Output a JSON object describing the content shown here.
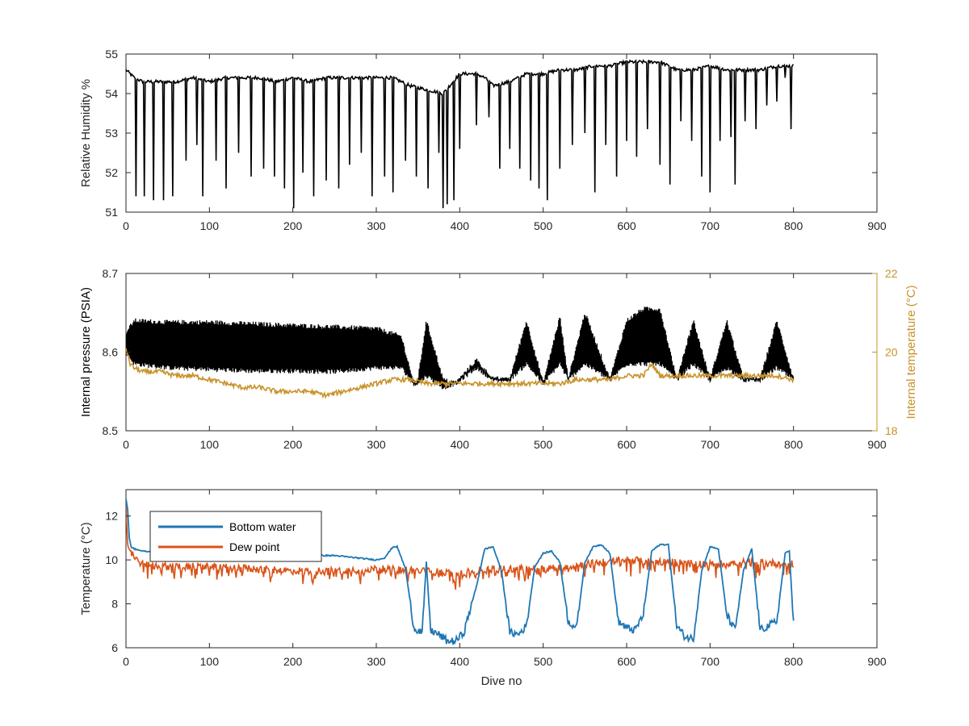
{
  "chart_data": [
    {
      "type": "line",
      "xlabel": "",
      "ylabel": "Relative Humidity %",
      "xlim": [
        0,
        900
      ],
      "ylim": [
        51,
        55
      ],
      "xticks": [
        0,
        100,
        200,
        300,
        400,
        500,
        600,
        700,
        800,
        900
      ],
      "yticks": [
        51,
        52,
        53,
        54,
        55
      ],
      "grid": false,
      "series": [
        {
          "color": "#000000",
          "x": [
            0,
            10,
            20,
            40,
            60,
            80,
            100,
            120,
            140,
            160,
            180,
            200,
            220,
            240,
            260,
            280,
            300,
            320,
            340,
            360,
            380,
            400,
            420,
            430,
            440,
            460,
            480,
            500,
            520,
            540,
            560,
            580,
            600,
            620,
            640,
            660,
            680,
            700,
            720,
            740,
            760,
            780,
            800
          ],
          "values": [
            54.6,
            54.4,
            54.3,
            54.3,
            54.3,
            54.4,
            54.3,
            54.4,
            54.4,
            54.4,
            54.3,
            54.4,
            54.3,
            54.4,
            54.4,
            54.4,
            54.4,
            54.4,
            54.2,
            54.1,
            54.0,
            54.5,
            54.5,
            54.4,
            54.2,
            54.3,
            54.5,
            54.5,
            54.6,
            54.6,
            54.7,
            54.7,
            54.8,
            54.8,
            54.8,
            54.6,
            54.6,
            54.7,
            54.6,
            54.6,
            54.6,
            54.7,
            54.7
          ],
          "dips": [
            {
              "x": 12,
              "min": 51.4
            },
            {
              "x": 22,
              "min": 51.4
            },
            {
              "x": 33,
              "min": 51.3
            },
            {
              "x": 45,
              "min": 51.3
            },
            {
              "x": 56,
              "min": 51.4
            },
            {
              "x": 72,
              "min": 52.3
            },
            {
              "x": 85,
              "min": 52.7
            },
            {
              "x": 92,
              "min": 51.4
            },
            {
              "x": 108,
              "min": 52.3
            },
            {
              "x": 120,
              "min": 51.6
            },
            {
              "x": 135,
              "min": 52.5
            },
            {
              "x": 150,
              "min": 51.9
            },
            {
              "x": 165,
              "min": 52.1
            },
            {
              "x": 178,
              "min": 51.9
            },
            {
              "x": 190,
              "min": 51.6
            },
            {
              "x": 201,
              "min": 51.1
            },
            {
              "x": 212,
              "min": 52.0
            },
            {
              "x": 225,
              "min": 51.4
            },
            {
              "x": 240,
              "min": 51.8
            },
            {
              "x": 255,
              "min": 51.6
            },
            {
              "x": 268,
              "min": 52.2
            },
            {
              "x": 282,
              "min": 52.5
            },
            {
              "x": 295,
              "min": 51.4
            },
            {
              "x": 310,
              "min": 51.9
            },
            {
              "x": 320,
              "min": 51.5
            },
            {
              "x": 335,
              "min": 52.3
            },
            {
              "x": 348,
              "min": 51.9
            },
            {
              "x": 362,
              "min": 51.6
            },
            {
              "x": 375,
              "min": 52.5
            },
            {
              "x": 380,
              "min": 51.1
            },
            {
              "x": 385,
              "min": 51.2
            },
            {
              "x": 393,
              "min": 51.3
            },
            {
              "x": 400,
              "min": 52.6
            },
            {
              "x": 420,
              "min": 53.2
            },
            {
              "x": 435,
              "min": 53.4
            },
            {
              "x": 448,
              "min": 52.1
            },
            {
              "x": 460,
              "min": 52.6
            },
            {
              "x": 472,
              "min": 52.1
            },
            {
              "x": 485,
              "min": 51.8
            },
            {
              "x": 495,
              "min": 51.6
            },
            {
              "x": 505,
              "min": 51.3
            },
            {
              "x": 520,
              "min": 52.1
            },
            {
              "x": 535,
              "min": 52.7
            },
            {
              "x": 550,
              "min": 53.0
            },
            {
              "x": 562,
              "min": 51.5
            },
            {
              "x": 575,
              "min": 52.7
            },
            {
              "x": 588,
              "min": 51.9
            },
            {
              "x": 600,
              "min": 52.8
            },
            {
              "x": 612,
              "min": 52.4
            },
            {
              "x": 625,
              "min": 53.1
            },
            {
              "x": 640,
              "min": 52.2
            },
            {
              "x": 652,
              "min": 51.7
            },
            {
              "x": 665,
              "min": 53.3
            },
            {
              "x": 678,
              "min": 52.8
            },
            {
              "x": 690,
              "min": 51.9
            },
            {
              "x": 700,
              "min": 51.5
            },
            {
              "x": 712,
              "min": 52.8
            },
            {
              "x": 725,
              "min": 52.9
            },
            {
              "x": 730,
              "min": 51.7
            },
            {
              "x": 742,
              "min": 53.3
            },
            {
              "x": 755,
              "min": 53.1
            },
            {
              "x": 768,
              "min": 53.7
            },
            {
              "x": 780,
              "min": 53.8
            },
            {
              "x": 790,
              "min": 54.4
            },
            {
              "x": 797,
              "min": 53.1
            }
          ]
        }
      ]
    },
    {
      "type": "line",
      "xlabel": "",
      "ylabel": "Internal pressure (PSIA)",
      "y2label": "Internal temperature (°C)",
      "xlim": [
        0,
        900
      ],
      "ylim": [
        8.5,
        8.7
      ],
      "y2lim": [
        18,
        22
      ],
      "xticks": [
        0,
        100,
        200,
        300,
        400,
        500,
        600,
        700,
        800,
        900
      ],
      "yticks": [
        8.5,
        8.6,
        8.7
      ],
      "y2ticks": [
        18,
        20,
        22
      ],
      "y2color": "#C8922A",
      "grid": false,
      "series": [
        {
          "axis": "left",
          "color": "#000000",
          "x": [
            0,
            10,
            50,
            100,
            150,
            200,
            250,
            300,
            330,
            345,
            350,
            360,
            380,
            395,
            420,
            440,
            460,
            480,
            500,
            520,
            530,
            550,
            580,
            600,
            620,
            640,
            660,
            680,
            700,
            720,
            740,
            760,
            780,
            800
          ],
          "upper": [
            8.625,
            8.64,
            8.638,
            8.638,
            8.636,
            8.634,
            8.632,
            8.63,
            8.62,
            8.56,
            8.565,
            8.64,
            8.565,
            8.56,
            8.59,
            8.565,
            8.565,
            8.64,
            8.56,
            8.645,
            8.565,
            8.65,
            8.565,
            8.64,
            8.655,
            8.655,
            8.565,
            8.64,
            8.565,
            8.64,
            8.565,
            8.565,
            8.64,
            8.565
          ],
          "lower": [
            8.6,
            8.585,
            8.58,
            8.578,
            8.576,
            8.576,
            8.575,
            8.58,
            8.58,
            8.56,
            8.56,
            8.57,
            8.555,
            8.56,
            8.58,
            8.565,
            8.565,
            8.585,
            8.56,
            8.585,
            8.565,
            8.585,
            8.565,
            8.585,
            8.585,
            8.585,
            8.565,
            8.585,
            8.565,
            8.58,
            8.565,
            8.565,
            8.58,
            8.565
          ]
        },
        {
          "axis": "right",
          "color": "#C8922A",
          "x": [
            0,
            5,
            10,
            20,
            40,
            60,
            80,
            100,
            120,
            140,
            160,
            180,
            200,
            220,
            240,
            260,
            280,
            300,
            320,
            340,
            360,
            380,
            400,
            420,
            440,
            460,
            480,
            500,
            520,
            540,
            560,
            580,
            600,
            620,
            630,
            640,
            660,
            680,
            700,
            720,
            740,
            760,
            780,
            800
          ],
          "values": [
            20.1,
            19.7,
            19.6,
            19.5,
            19.5,
            19.4,
            19.4,
            19.3,
            19.2,
            19.1,
            19.1,
            19.0,
            19.0,
            19.0,
            18.9,
            19.0,
            19.1,
            19.2,
            19.3,
            19.3,
            19.2,
            19.2,
            19.2,
            19.2,
            19.2,
            19.2,
            19.2,
            19.2,
            19.2,
            19.3,
            19.3,
            19.3,
            19.4,
            19.4,
            19.7,
            19.4,
            19.4,
            19.4,
            19.4,
            19.4,
            19.4,
            19.4,
            19.4,
            19.3
          ]
        }
      ]
    },
    {
      "type": "line",
      "xlabel": "Dive no",
      "ylabel": "Temperature (°C)",
      "xlim": [
        0,
        900
      ],
      "ylim": [
        6,
        13.2
      ],
      "xticks": [
        0,
        100,
        200,
        300,
        400,
        500,
        600,
        700,
        800,
        900
      ],
      "yticks": [
        6,
        8,
        10,
        12
      ],
      "grid": false,
      "legend": "top-left",
      "series": [
        {
          "name": "Bottom water",
          "color": "#1F77B4",
          "x": [
            0,
            2,
            4,
            6,
            10,
            20,
            50,
            100,
            150,
            200,
            250,
            300,
            310,
            320,
            325,
            335,
            345,
            355,
            360,
            365,
            375,
            385,
            395,
            405,
            420,
            430,
            440,
            450,
            460,
            470,
            480,
            490,
            500,
            510,
            520,
            530,
            540,
            550,
            560,
            570,
            580,
            590,
            600,
            610,
            620,
            630,
            640,
            650,
            660,
            670,
            680,
            690,
            700,
            710,
            720,
            730,
            740,
            750,
            760,
            770,
            780,
            790,
            795,
            800
          ],
          "values": [
            12.8,
            12.3,
            11.0,
            10.6,
            10.5,
            10.4,
            10.3,
            10.3,
            10.2,
            10.2,
            10.2,
            10.0,
            10.1,
            10.6,
            10.6,
            9.6,
            6.9,
            6.7,
            9.9,
            6.8,
            6.6,
            6.3,
            6.3,
            6.7,
            8.8,
            10.5,
            10.6,
            9.5,
            6.7,
            6.6,
            7.0,
            9.7,
            10.3,
            10.4,
            9.9,
            7.2,
            6.9,
            9.9,
            10.6,
            10.7,
            10.3,
            7.2,
            6.9,
            6.8,
            7.5,
            10.4,
            10.7,
            10.7,
            7.0,
            6.5,
            6.4,
            9.5,
            10.6,
            10.5,
            7.5,
            6.8,
            9.5,
            10.5,
            6.8,
            7.0,
            7.2,
            10.3,
            10.4,
            7.1
          ]
        },
        {
          "name": "Dew point",
          "color": "#D95319",
          "x": [
            0,
            2,
            5,
            10,
            20,
            50,
            100,
            150,
            200,
            250,
            300,
            350,
            400,
            450,
            500,
            550,
            600,
            650,
            700,
            750,
            800
          ],
          "values": [
            12.4,
            10.8,
            10.4,
            10.1,
            9.8,
            9.7,
            9.7,
            9.6,
            9.5,
            9.5,
            9.6,
            9.5,
            9.4,
            9.6,
            9.6,
            9.8,
            10.0,
            9.9,
            9.8,
            9.9,
            9.8
          ]
        }
      ]
    }
  ]
}
